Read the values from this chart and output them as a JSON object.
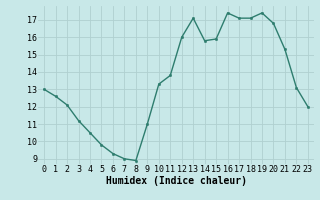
{
  "x": [
    0,
    1,
    2,
    3,
    4,
    5,
    6,
    7,
    8,
    9,
    10,
    11,
    12,
    13,
    14,
    15,
    16,
    17,
    18,
    19,
    20,
    21,
    22,
    23
  ],
  "y": [
    13.0,
    12.6,
    12.1,
    11.2,
    10.5,
    9.8,
    9.3,
    9.0,
    8.9,
    11.0,
    13.3,
    13.8,
    16.0,
    17.1,
    15.8,
    15.9,
    17.4,
    17.1,
    17.1,
    17.4,
    16.8,
    15.3,
    13.1,
    12.0
  ],
  "line_color": "#2e7d6e",
  "marker": "o",
  "marker_size": 1.8,
  "line_width": 1.0,
  "bg_color": "#c8e8e8",
  "grid_color": "#b0d0d0",
  "xlabel": "Humidex (Indice chaleur)",
  "xlabel_fontsize": 7,
  "tick_fontsize": 6,
  "ylim": [
    8.7,
    17.8
  ],
  "xlim": [
    -0.5,
    23.5
  ],
  "yticks": [
    9,
    10,
    11,
    12,
    13,
    14,
    15,
    16,
    17
  ],
  "xticks": [
    0,
    1,
    2,
    3,
    4,
    5,
    6,
    7,
    8,
    9,
    10,
    11,
    12,
    13,
    14,
    15,
    16,
    17,
    18,
    19,
    20,
    21,
    22,
    23
  ]
}
